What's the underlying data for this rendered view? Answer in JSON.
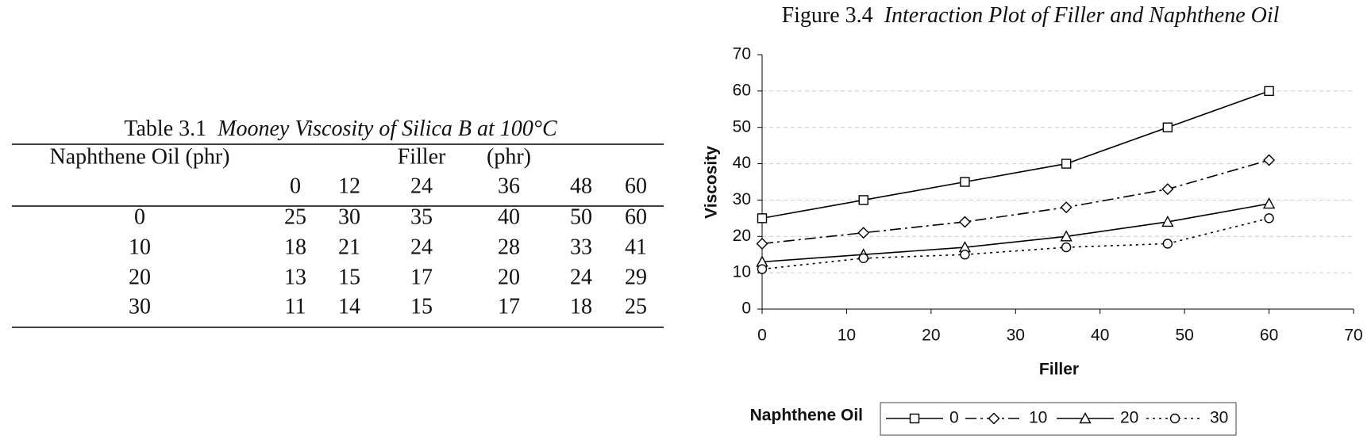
{
  "table": {
    "caption_label": "Table 3.1",
    "caption": "Mooney Viscosity of Silica B at 100°C",
    "row_header": "Naphthene Oil (phr)",
    "column_group": "Filler",
    "column_unit": "(phr)",
    "columns": [
      0,
      12,
      24,
      36,
      48,
      60
    ],
    "rows": [
      [
        0,
        25,
        30,
        35,
        40,
        50,
        60
      ],
      [
        10,
        18,
        21,
        24,
        28,
        33,
        41
      ],
      [
        20,
        13,
        15,
        17,
        20,
        24,
        29
      ],
      [
        30,
        11,
        14,
        15,
        17,
        18,
        25
      ]
    ]
  },
  "chart_data": {
    "type": "line",
    "title_label": "Figure 3.4",
    "title": "Interaction Plot of Filler and Naphthene Oil",
    "xlabel": "Filler",
    "ylabel": "Viscosity",
    "legend_title": "Naphthene Oil",
    "legend": "bottom",
    "x": [
      0,
      12,
      24,
      36,
      48,
      60
    ],
    "series": [
      {
        "name": "0",
        "color": "#000000",
        "marker": "square",
        "dash": "solid",
        "values": [
          25,
          30,
          35,
          40,
          50,
          60
        ]
      },
      {
        "name": "10",
        "color": "#000000",
        "marker": "diamond",
        "dash": "dashdot",
        "values": [
          18,
          21,
          24,
          28,
          33,
          41
        ]
      },
      {
        "name": "20",
        "color": "#000000",
        "marker": "triangle",
        "dash": "solid",
        "values": [
          13,
          15,
          17,
          20,
          24,
          29
        ]
      },
      {
        "name": "30",
        "color": "#000000",
        "marker": "circle",
        "dash": "dotted",
        "values": [
          11,
          14,
          15,
          17,
          18,
          25
        ]
      }
    ],
    "xlim": [
      0,
      70
    ],
    "xticks": [
      0,
      10,
      20,
      30,
      40,
      50,
      60,
      70
    ],
    "ylim": [
      0,
      70
    ],
    "yticks": [
      0,
      10,
      20,
      30,
      40,
      50,
      60,
      70
    ],
    "grid": true
  }
}
